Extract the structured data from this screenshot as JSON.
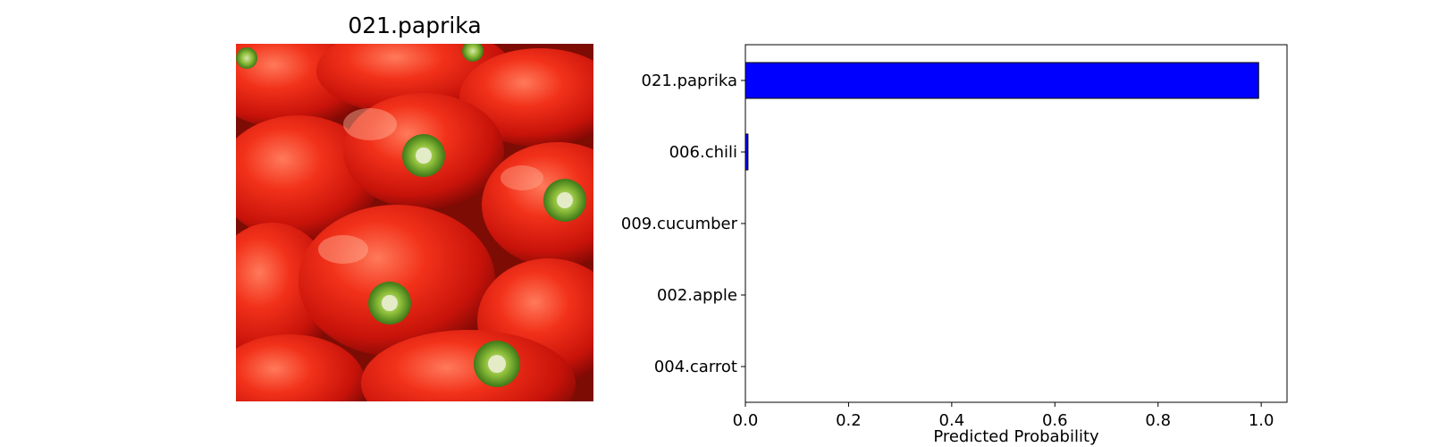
{
  "image_panel": {
    "title": "021.paprika",
    "icon": "red-bell-peppers-photo"
  },
  "chart_data": {
    "type": "bar",
    "orientation": "horizontal",
    "categories": [
      "021.paprika",
      "006.chili",
      "009.cucumber",
      "002.apple",
      "004.carrot"
    ],
    "values": [
      0.995,
      0.005,
      0.0,
      0.0,
      0.0
    ],
    "xlabel": "Predicted Probability",
    "ylabel": "",
    "title": "",
    "xlim": [
      0,
      1.05
    ],
    "xticks": [
      "0.0",
      "0.2",
      "0.4",
      "0.6",
      "0.8",
      "1.0"
    ],
    "bar_color": "#0000ff",
    "bar_edge_color": "#000000",
    "grid": false,
    "legend": "none"
  }
}
